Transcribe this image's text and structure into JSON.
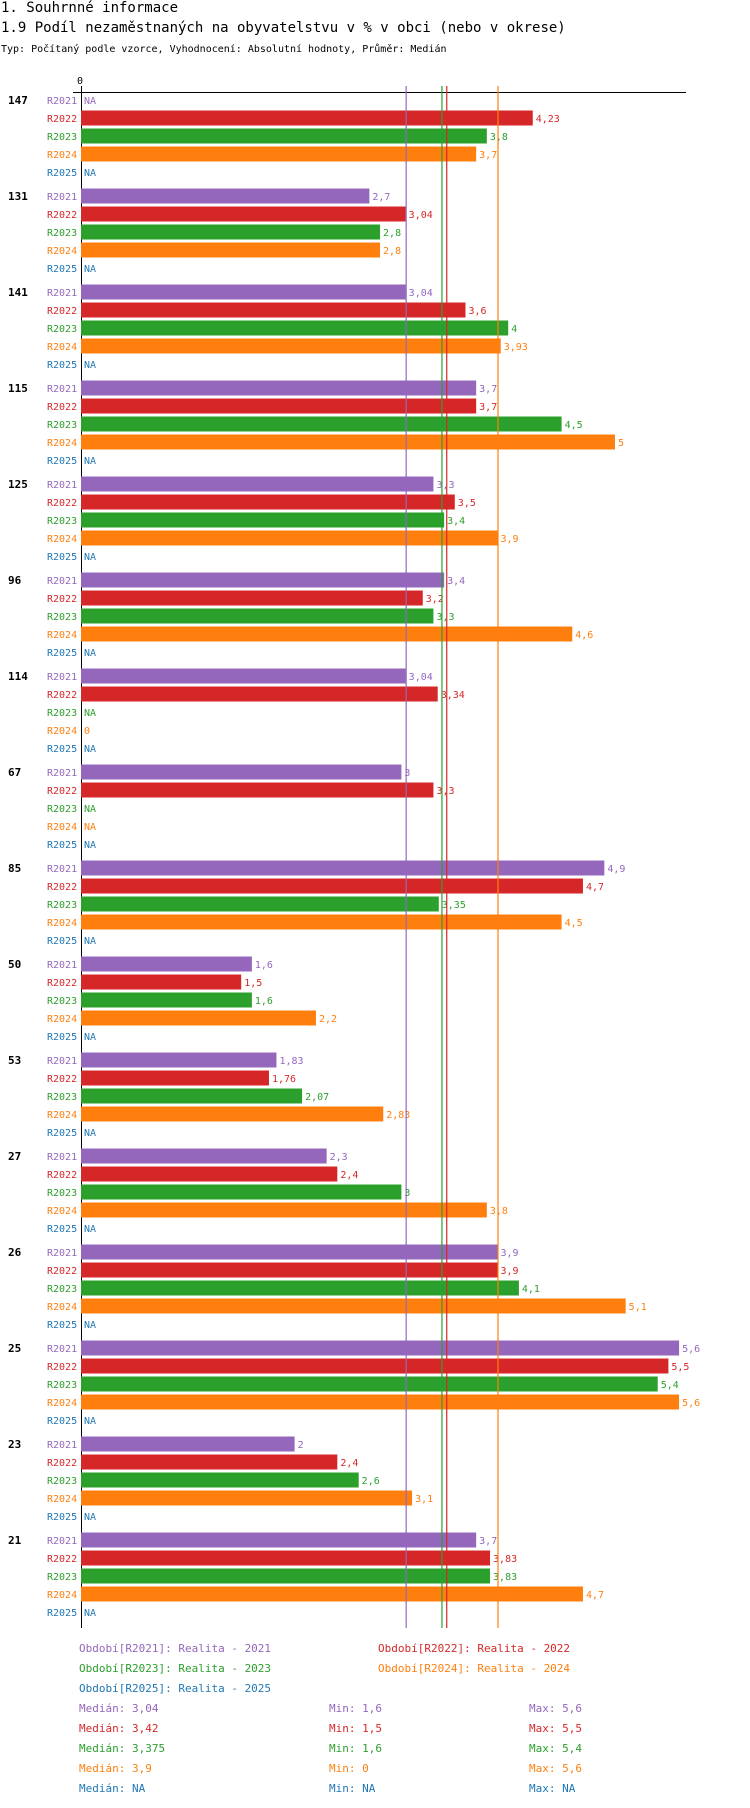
{
  "section_title": "1. Souhrnné informace",
  "chart_title": "1.9 Podíl nezaměstnaných na obyvatelstvu v % v obci (nebo v okrese)",
  "subtitle": "Typ: Počítaný podle vzorce, Vyhodnocení: Absolutní hodnoty, Průměr: Medián",
  "colors": {
    "R2021": "#9467bd",
    "R2022": "#d62728",
    "R2023": "#2ca02c",
    "R2024": "#ff7f0e",
    "R2025": "#1f77b4"
  },
  "chart_data": {
    "type": "bar",
    "orientation": "horizontal",
    "title": "1.9 Podíl nezaměstnaných na obyvatelstvu v % v obci (nebo v okrese)",
    "axis_zero_label": "0",
    "xlim": [
      0,
      5.6
    ],
    "series_names": [
      "R2021",
      "R2022",
      "R2023",
      "R2024",
      "R2025"
    ],
    "groups": [
      {
        "id": "147",
        "values": [
          null,
          4.23,
          3.8,
          3.7,
          null
        ],
        "labels": [
          "NA",
          "4,23",
          "3,8",
          "3,7",
          "NA"
        ]
      },
      {
        "id": "131",
        "values": [
          2.7,
          3.04,
          2.8,
          2.8,
          null
        ],
        "labels": [
          "2,7",
          "3,04",
          "2,8",
          "2,8",
          "NA"
        ]
      },
      {
        "id": "141",
        "values": [
          3.04,
          3.6,
          4,
          3.93,
          null
        ],
        "labels": [
          "3,04",
          "3,6",
          "4",
          "3,93",
          "NA"
        ]
      },
      {
        "id": "115",
        "values": [
          3.7,
          3.7,
          4.5,
          5,
          null
        ],
        "labels": [
          "3,7",
          "3,7",
          "4,5",
          "5",
          "NA"
        ]
      },
      {
        "id": "125",
        "values": [
          3.3,
          3.5,
          3.4,
          3.9,
          null
        ],
        "labels": [
          "3,3",
          "3,5",
          "3,4",
          "3,9",
          "NA"
        ]
      },
      {
        "id": "96",
        "values": [
          3.4,
          3.2,
          3.3,
          4.6,
          null
        ],
        "labels": [
          "3,4",
          "3,2",
          "3,3",
          "4,6",
          "NA"
        ]
      },
      {
        "id": "114",
        "values": [
          3.04,
          3.34,
          null,
          0,
          null
        ],
        "labels": [
          "3,04",
          "3,34",
          "NA",
          "0",
          "NA"
        ]
      },
      {
        "id": "67",
        "values": [
          3,
          3.3,
          null,
          null,
          null
        ],
        "labels": [
          "3",
          "3,3",
          "NA",
          "NA",
          "NA"
        ]
      },
      {
        "id": "85",
        "values": [
          4.9,
          4.7,
          3.35,
          4.5,
          null
        ],
        "labels": [
          "4,9",
          "4,7",
          "3,35",
          "4,5",
          "NA"
        ]
      },
      {
        "id": "50",
        "values": [
          1.6,
          1.5,
          1.6,
          2.2,
          null
        ],
        "labels": [
          "1,6",
          "1,5",
          "1,6",
          "2,2",
          "NA"
        ]
      },
      {
        "id": "53",
        "values": [
          1.83,
          1.76,
          2.07,
          2.83,
          null
        ],
        "labels": [
          "1,83",
          "1,76",
          "2,07",
          "2,83",
          "NA"
        ]
      },
      {
        "id": "27",
        "values": [
          2.3,
          2.4,
          3,
          3.8,
          null
        ],
        "labels": [
          "2,3",
          "2,4",
          "3",
          "3,8",
          "NA"
        ]
      },
      {
        "id": "26",
        "values": [
          3.9,
          3.9,
          4.1,
          5.1,
          null
        ],
        "labels": [
          "3,9",
          "3,9",
          "4,1",
          "5,1",
          "NA"
        ]
      },
      {
        "id": "25",
        "values": [
          5.6,
          5.5,
          5.4,
          5.6,
          null
        ],
        "labels": [
          "5,6",
          "5,5",
          "5,4",
          "5,6",
          "NA"
        ]
      },
      {
        "id": "23",
        "values": [
          2,
          2.4,
          2.6,
          3.1,
          null
        ],
        "labels": [
          "2",
          "2,4",
          "2,6",
          "3,1",
          "NA"
        ]
      },
      {
        "id": "21",
        "values": [
          3.7,
          3.83,
          3.83,
          4.7,
          null
        ],
        "labels": [
          "3,7",
          "3,83",
          "3,83",
          "4,7",
          "NA"
        ]
      }
    ],
    "median_lines": {
      "R2021": 3.04,
      "R2022": 3.42,
      "R2023": 3.375,
      "R2024": 3.9
    }
  },
  "legend": [
    {
      "series": "R2021",
      "text": "Období[R2021]: Realita - 2021"
    },
    {
      "series": "R2022",
      "text": "Období[R2022]: Realita - 2022"
    },
    {
      "series": "R2023",
      "text": "Období[R2023]: Realita - 2023"
    },
    {
      "series": "R2024",
      "text": "Období[R2024]: Realita - 2024"
    },
    {
      "series": "R2025",
      "text": "Období[R2025]: Realita - 2025"
    }
  ],
  "stats": [
    {
      "series": "R2021",
      "median": "Medián: 3,04",
      "min": "Min: 1,6",
      "max": "Max: 5,6"
    },
    {
      "series": "R2022",
      "median": "Medián: 3,42",
      "min": "Min: 1,5",
      "max": "Max: 5,5"
    },
    {
      "series": "R2023",
      "median": "Medián: 3,375",
      "min": "Min: 1,6",
      "max": "Max: 5,4"
    },
    {
      "series": "R2024",
      "median": "Medián: 3,9",
      "min": "Min: 0",
      "max": "Max: 5,6"
    },
    {
      "series": "R2025",
      "median": "Medián: NA",
      "min": "Min: NA",
      "max": "Max: NA"
    }
  ]
}
